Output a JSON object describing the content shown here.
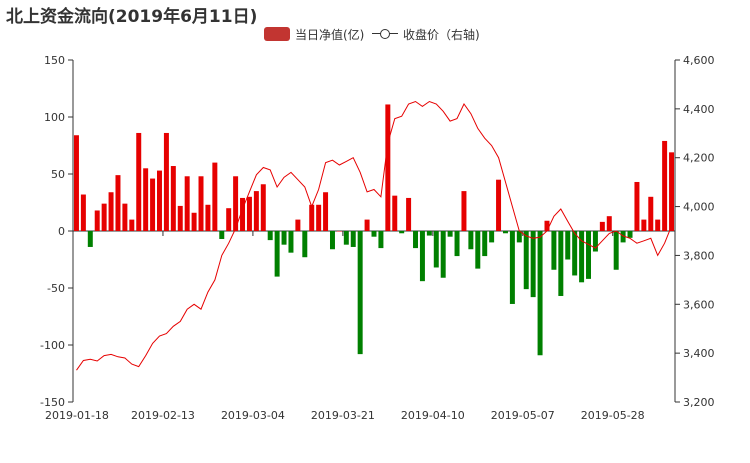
{
  "chart_data": {
    "type": "bar+line",
    "title": "北上资金流向(2019年6月11日)",
    "legend": {
      "placement": "top-center",
      "items": [
        {
          "name": "当日净值(亿)",
          "marker": "bar",
          "color": "#c23531"
        },
        {
          "name": "收盘价（右轴)",
          "marker": "line-circle",
          "color": "#333333"
        }
      ]
    },
    "colors": {
      "positive": "#e60000",
      "negative": "#008000",
      "line": "#e60000",
      "axis": "#333333"
    },
    "y_left": {
      "min": -150,
      "max": 150,
      "ticks": [
        150,
        100,
        50,
        0,
        -50,
        -100,
        -150
      ]
    },
    "y_right": {
      "min": 3200,
      "max": 4600,
      "ticks": [
        "4,600",
        "4,400",
        "4,200",
        "4,000",
        "3,800",
        "3,600",
        "3,400",
        "3,200"
      ],
      "tick_values": [
        4600,
        4400,
        4200,
        4000,
        3800,
        3600,
        3400,
        3200
      ]
    },
    "x_tick_labels": [
      {
        "label": "2019-01-18",
        "index": 0
      },
      {
        "label": "2019-02-13",
        "index": 13
      },
      {
        "label": "2019-03-04",
        "index": 26
      },
      {
        "label": "2019-03-21",
        "index": 39
      },
      {
        "label": "2019-04-10",
        "index": 52
      },
      {
        "label": "2019-05-07",
        "index": 65
      },
      {
        "label": "2019-05-28",
        "index": 78
      }
    ],
    "net_inflow": [
      84,
      32,
      -14,
      18,
      24,
      34,
      49,
      24,
      10,
      86,
      55,
      46,
      53,
      86,
      57,
      22,
      48,
      16,
      48,
      23,
      60,
      -7,
      20,
      48,
      29,
      30,
      35,
      41,
      -8,
      -40,
      -12,
      -19,
      10,
      -23,
      23,
      23,
      34,
      -16,
      0,
      -12,
      -14,
      -108,
      10,
      -5,
      -15,
      111,
      31,
      -2,
      29,
      -15,
      -44,
      -4,
      -32,
      -41,
      -5,
      -22,
      35,
      -16,
      -33,
      -22,
      -10,
      45,
      -2,
      -64,
      -10,
      -51,
      -58,
      -109,
      9,
      -34,
      -57,
      -25,
      -39,
      -45,
      -42,
      -18,
      8,
      13,
      -34,
      -10,
      -6,
      43,
      10,
      30,
      10,
      79,
      69
    ],
    "close_price": [
      3330,
      3370,
      3375,
      3368,
      3390,
      3395,
      3385,
      3380,
      3355,
      3345,
      3390,
      3440,
      3470,
      3480,
      3510,
      3530,
      3580,
      3600,
      3580,
      3650,
      3700,
      3800,
      3850,
      3910,
      3990,
      4060,
      4130,
      4160,
      4150,
      4080,
      4120,
      4140,
      4110,
      4080,
      4000,
      4070,
      4180,
      4190,
      4170,
      4185,
      4200,
      4140,
      4060,
      4070,
      4040,
      4260,
      4360,
      4370,
      4420,
      4430,
      4410,
      4430,
      4420,
      4390,
      4350,
      4360,
      4420,
      4380,
      4320,
      4280,
      4250,
      4200,
      4100,
      4000,
      3900,
      3880,
      3870,
      3875,
      3900,
      3960,
      3990,
      3940,
      3890,
      3860,
      3845,
      3830,
      3860,
      3890,
      3900,
      3880,
      3870,
      3850,
      3860,
      3870,
      3800,
      3850,
      3920
    ]
  }
}
